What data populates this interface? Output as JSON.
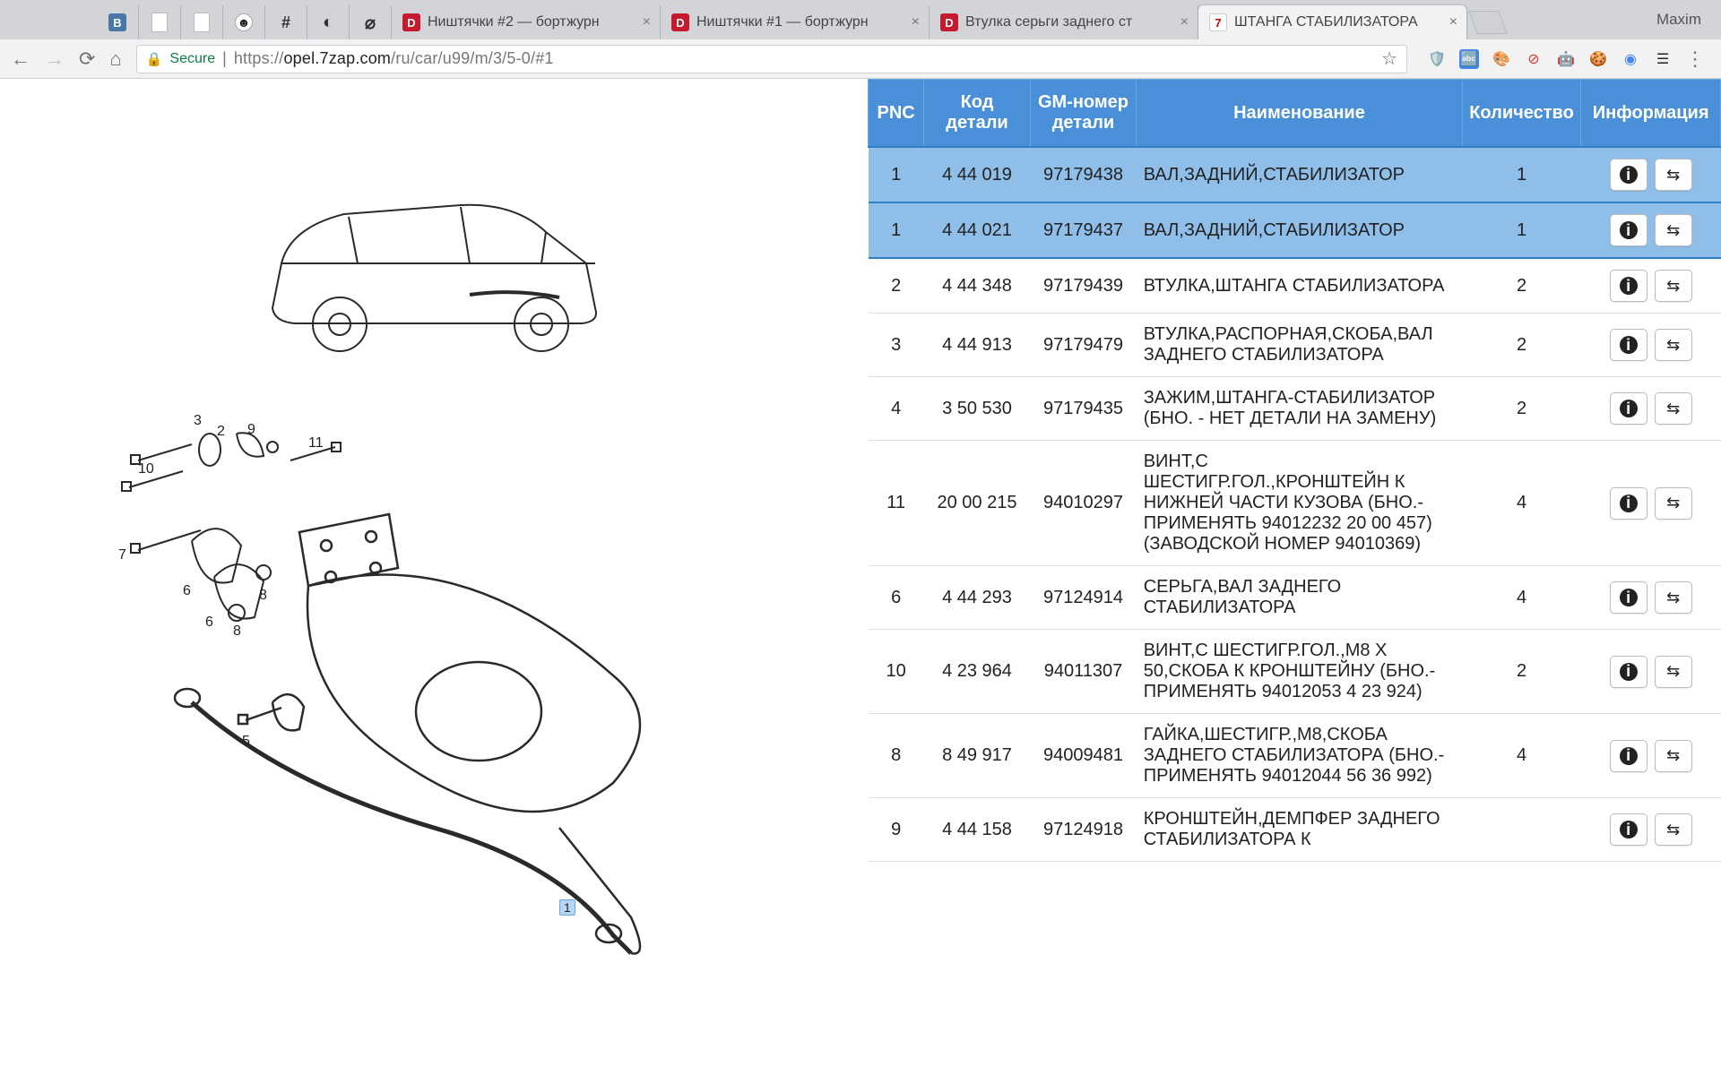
{
  "browser": {
    "profile_name": "Maxim",
    "pinned_tabs": [
      "vk",
      "file",
      "file",
      "github",
      "hash",
      "spinner",
      "opera"
    ],
    "tabs": [
      {
        "favicon": "D",
        "title": "Ништячки #2 — бортжурн"
      },
      {
        "favicon": "D",
        "title": "Ништячки #1 — бортжурн"
      },
      {
        "favicon": "D",
        "title": "Втулка серьги заднего ст"
      },
      {
        "favicon": "7",
        "title": "ШТАНГА СТАБИЛИЗАТОРА",
        "active": true
      }
    ],
    "secure_label": "Secure",
    "url_prefix": "https://",
    "url_host": "opel.7zap.com",
    "url_path": "/ru/car/u99/m/3/5-0/#1"
  },
  "table": {
    "headers": {
      "pnc": "PNC",
      "code": "Код детали",
      "gm": "GM-номер детали",
      "name": "Наименование",
      "qty": "Количество",
      "info": "Информация"
    },
    "rows": [
      {
        "pnc": "1",
        "code": "4 44 019",
        "gm": "97179438",
        "name": "ВАЛ,ЗАДНИЙ,СТАБИЛИЗАТОР",
        "qty": "1",
        "hl": true
      },
      {
        "pnc": "1",
        "code": "4 44 021",
        "gm": "97179437",
        "name": "ВАЛ,ЗАДНИЙ,СТАБИЛИЗАТОР",
        "qty": "1",
        "hl": true
      },
      {
        "pnc": "2",
        "code": "4 44 348",
        "gm": "97179439",
        "name": "ВТУЛКА,ШТАНГА СТАБИЛИЗАТОРА",
        "qty": "2"
      },
      {
        "pnc": "3",
        "code": "4 44 913",
        "gm": "97179479",
        "name": "ВТУЛКА,РАСПОРНАЯ,СКОБА,ВАЛ ЗАДНЕГО СТАБИЛИЗАТОРА",
        "qty": "2"
      },
      {
        "pnc": "4",
        "code": "3 50 530",
        "gm": "97179435",
        "name": "ЗАЖИМ,ШТАНГА-СТАБИЛИЗАТОР (БНО. - НЕТ ДЕТАЛИ НА ЗАМЕНУ)",
        "qty": "2"
      },
      {
        "pnc": "11",
        "code": "20 00 215",
        "gm": "94010297",
        "name": "ВИНТ,С ШЕСТИГР.ГОЛ.,КРОНШТЕЙН К НИЖНЕЙ ЧАСТИ КУЗОВА (БНО.-ПРИМЕНЯТЬ 94012232 20 00 457)(ЗАВОДСКОЙ НОМЕР 94010369)",
        "qty": "4"
      },
      {
        "pnc": "6",
        "code": "4 44 293",
        "gm": "97124914",
        "name": "СЕРЬГА,ВАЛ ЗАДНЕГО СТАБИЛИЗАТОРА",
        "qty": "4"
      },
      {
        "pnc": "10",
        "code": "4 23 964",
        "gm": "94011307",
        "name": "ВИНТ,С ШЕСТИГР.ГОЛ.,М8 Х 50,СКОБА К КРОНШТЕЙНУ (БНО.- ПРИМЕНЯТЬ 94012053 4 23 924)",
        "qty": "2"
      },
      {
        "pnc": "8",
        "code": "8 49 917",
        "gm": "94009481",
        "name": "ГАЙКА,ШЕСТИГР.,М8,СКОБА ЗАДНЕГО СТАБИЛИЗАТОРА (БНО.- ПРИМЕНЯТЬ 94012044 56 36 992)",
        "qty": "4"
      },
      {
        "pnc": "9",
        "code": "4 44 158",
        "gm": "97124918",
        "name": "КРОНШТЕЙН,ДЕМПФЕР ЗАДНЕГО СТАБИЛИЗАТОРА К",
        "qty": ""
      }
    ]
  },
  "icons": {
    "info": "ℹ",
    "swap": "⇄"
  },
  "diagram": {
    "callouts": [
      "1",
      "2",
      "3",
      "5",
      "6",
      "7",
      "8",
      "9",
      "10",
      "11"
    ],
    "highlight_callout": "1"
  }
}
